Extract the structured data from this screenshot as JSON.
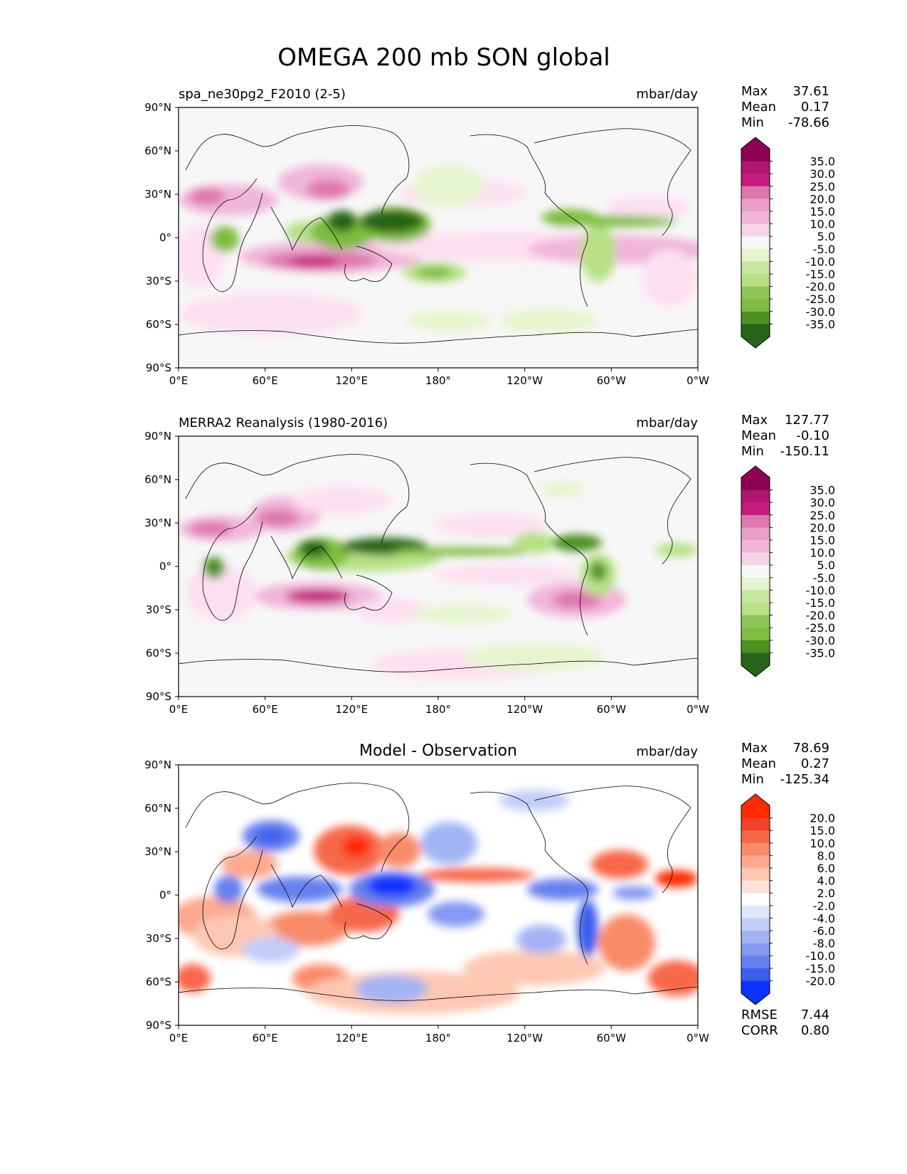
{
  "title": "OMEGA 200 mb SON global",
  "lat_ticks": [
    "90°N",
    "60°N",
    "30°N",
    "0°",
    "30°S",
    "60°S",
    "90°S"
  ],
  "lon_ticks": [
    "0°E",
    "60°E",
    "120°E",
    "180°",
    "120°W",
    "60°W",
    "0°W"
  ],
  "panels": [
    {
      "id": "model",
      "left_title": "spa_ne30pg2_F2010 (2-5)",
      "center_title": "",
      "units": "mbar/day",
      "stats": {
        "max_label": "Max",
        "max": "37.61",
        "mean_label": "Mean",
        "mean": "0.17",
        "min_label": "Min",
        "min": "-78.66"
      },
      "colorbar": {
        "labels": [
          "35.0",
          "30.0",
          "25.0",
          "20.0",
          "15.0",
          "10.0",
          "5.0",
          "-5.0",
          "-10.0",
          "-15.0",
          "-20.0",
          "-25.0",
          "-30.0",
          "-35.0"
        ],
        "colors": [
          "#8e0152",
          "#b0166e",
          "#c51b7d",
          "#de77ae",
          "#ea9fc8",
          "#f1b6da",
          "#f7d4e8",
          "#fde0ef",
          "#f7f7f7",
          "#e6f5d0",
          "#c7e6a1",
          "#b8e186",
          "#90c55a",
          "#7fbc41",
          "#5a9d2d",
          "#4d9221",
          "#2f6d14",
          "#276419"
        ],
        "stripe_colors": [
          "#8e0152",
          "#b0166e",
          "#c51b7d",
          "#de77ae",
          "#ea9fc8",
          "#f1b6da",
          "#f7d4e8",
          "#f7f7f7",
          "#e6f5d0",
          "#c7e6a1",
          "#b8e186",
          "#90c55a",
          "#7fbc41",
          "#4d9221",
          "#276419"
        ]
      },
      "extra": []
    },
    {
      "id": "obs",
      "left_title": "MERRA2 Reanalysis (1980-2016)",
      "center_title": "",
      "units": "mbar/day",
      "stats": {
        "max_label": "Max",
        "max": "127.77",
        "mean_label": "Mean",
        "mean": "-0.10",
        "min_label": "Min",
        "min": "-150.11"
      },
      "colorbar": {
        "labels": [
          "35.0",
          "30.0",
          "25.0",
          "20.0",
          "15.0",
          "10.0",
          "5.0",
          "-5.0",
          "-10.0",
          "-15.0",
          "-20.0",
          "-25.0",
          "-30.0",
          "-35.0"
        ],
        "stripe_colors": [
          "#8e0152",
          "#b0166e",
          "#c51b7d",
          "#de77ae",
          "#ea9fc8",
          "#f1b6da",
          "#f7d4e8",
          "#f7f7f7",
          "#e6f5d0",
          "#c7e6a1",
          "#b8e186",
          "#90c55a",
          "#7fbc41",
          "#4d9221",
          "#276419"
        ]
      },
      "extra": []
    },
    {
      "id": "diff",
      "left_title": "",
      "center_title": "Model - Observation",
      "units": "mbar/day",
      "stats": {
        "max_label": "Max",
        "max": "78.69",
        "mean_label": "Mean",
        "mean": "0.27",
        "min_label": "Min",
        "min": "-125.34"
      },
      "colorbar": {
        "labels": [
          "20.0",
          "15.0",
          "10.0",
          "8.0",
          "6.0",
          "4.0",
          "2.0",
          "-2.0",
          "-4.0",
          "-6.0",
          "-8.0",
          "-10.0",
          "-15.0",
          "-20.0"
        ],
        "stripe_colors": [
          "#ff2a00",
          "#f2412b",
          "#f66848",
          "#f98b6b",
          "#fca98f",
          "#fdc7b4",
          "#fee2d8",
          "#ffffff",
          "#e0e6fc",
          "#c2cdf8",
          "#a3b4f5",
          "#8599f2",
          "#6680ef",
          "#3d5fec",
          "#0a33ff"
        ]
      },
      "extra": [
        {
          "label": "RMSE",
          "value": "7.44"
        },
        {
          "label": "CORR",
          "value": "0.80"
        }
      ]
    }
  ]
}
